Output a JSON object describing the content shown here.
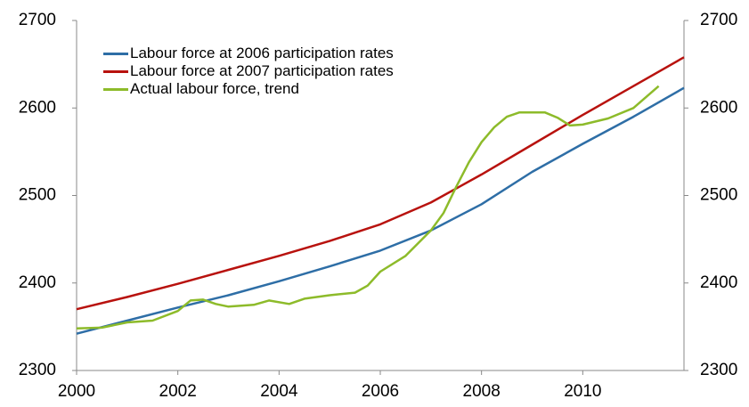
{
  "chart_data": {
    "type": "line",
    "xlim": [
      2000,
      2012
    ],
    "xticks": [
      2000,
      2002,
      2004,
      2006,
      2008,
      2010
    ],
    "ylim": [
      2300,
      2700
    ],
    "yticks": [
      2300,
      2400,
      2500,
      2600,
      2700
    ],
    "y2lim": [
      2300,
      2700
    ],
    "y2ticks": [
      2300,
      2400,
      2500,
      2600,
      2700
    ],
    "grid": false,
    "legend": "top-left",
    "series": [
      {
        "name": "Labour force at 2006 participation rates",
        "color": "#2e6ea6",
        "x": [
          2000,
          2001,
          2002,
          2003,
          2004,
          2005,
          2006,
          2007,
          2008,
          2009,
          2010,
          2011,
          2012
        ],
        "values": [
          2342,
          2357,
          2372,
          2386,
          2402,
          2419,
          2437,
          2460,
          2490,
          2527,
          2559,
          2590,
          2623
        ]
      },
      {
        "name": "Labour force at 2007 participation rates",
        "color": "#b8120e",
        "x": [
          2000,
          2001,
          2002,
          2003,
          2004,
          2005,
          2006,
          2007,
          2008,
          2009,
          2010,
          2011,
          2012
        ],
        "values": [
          2370,
          2384,
          2399,
          2415,
          2431,
          2448,
          2467,
          2492,
          2524,
          2558,
          2592,
          2625,
          2658
        ]
      },
      {
        "name": "Actual labour force, trend",
        "color": "#8dbb2a",
        "x": [
          2000,
          2000.5,
          2001,
          2001.5,
          2002,
          2002.25,
          2002.5,
          2002.75,
          2003,
          2003.5,
          2003.8,
          2004.2,
          2004.5,
          2005,
          2005.5,
          2005.75,
          2006,
          2006.5,
          2007,
          2007.25,
          2007.5,
          2007.75,
          2008,
          2008.25,
          2008.5,
          2008.75,
          2009,
          2009.25,
          2009.5,
          2009.75,
          2010,
          2010.5,
          2011,
          2011.5
        ],
        "values": [
          2348,
          2349,
          2355,
          2357,
          2368,
          2380,
          2381,
          2376,
          2373,
          2375,
          2380,
          2376,
          2382,
          2386,
          2389,
          2397,
          2413,
          2431,
          2460,
          2480,
          2510,
          2538,
          2561,
          2578,
          2590,
          2595,
          2595,
          2595,
          2589,
          2580,
          2581,
          2588,
          2600,
          2625
        ]
      }
    ]
  }
}
